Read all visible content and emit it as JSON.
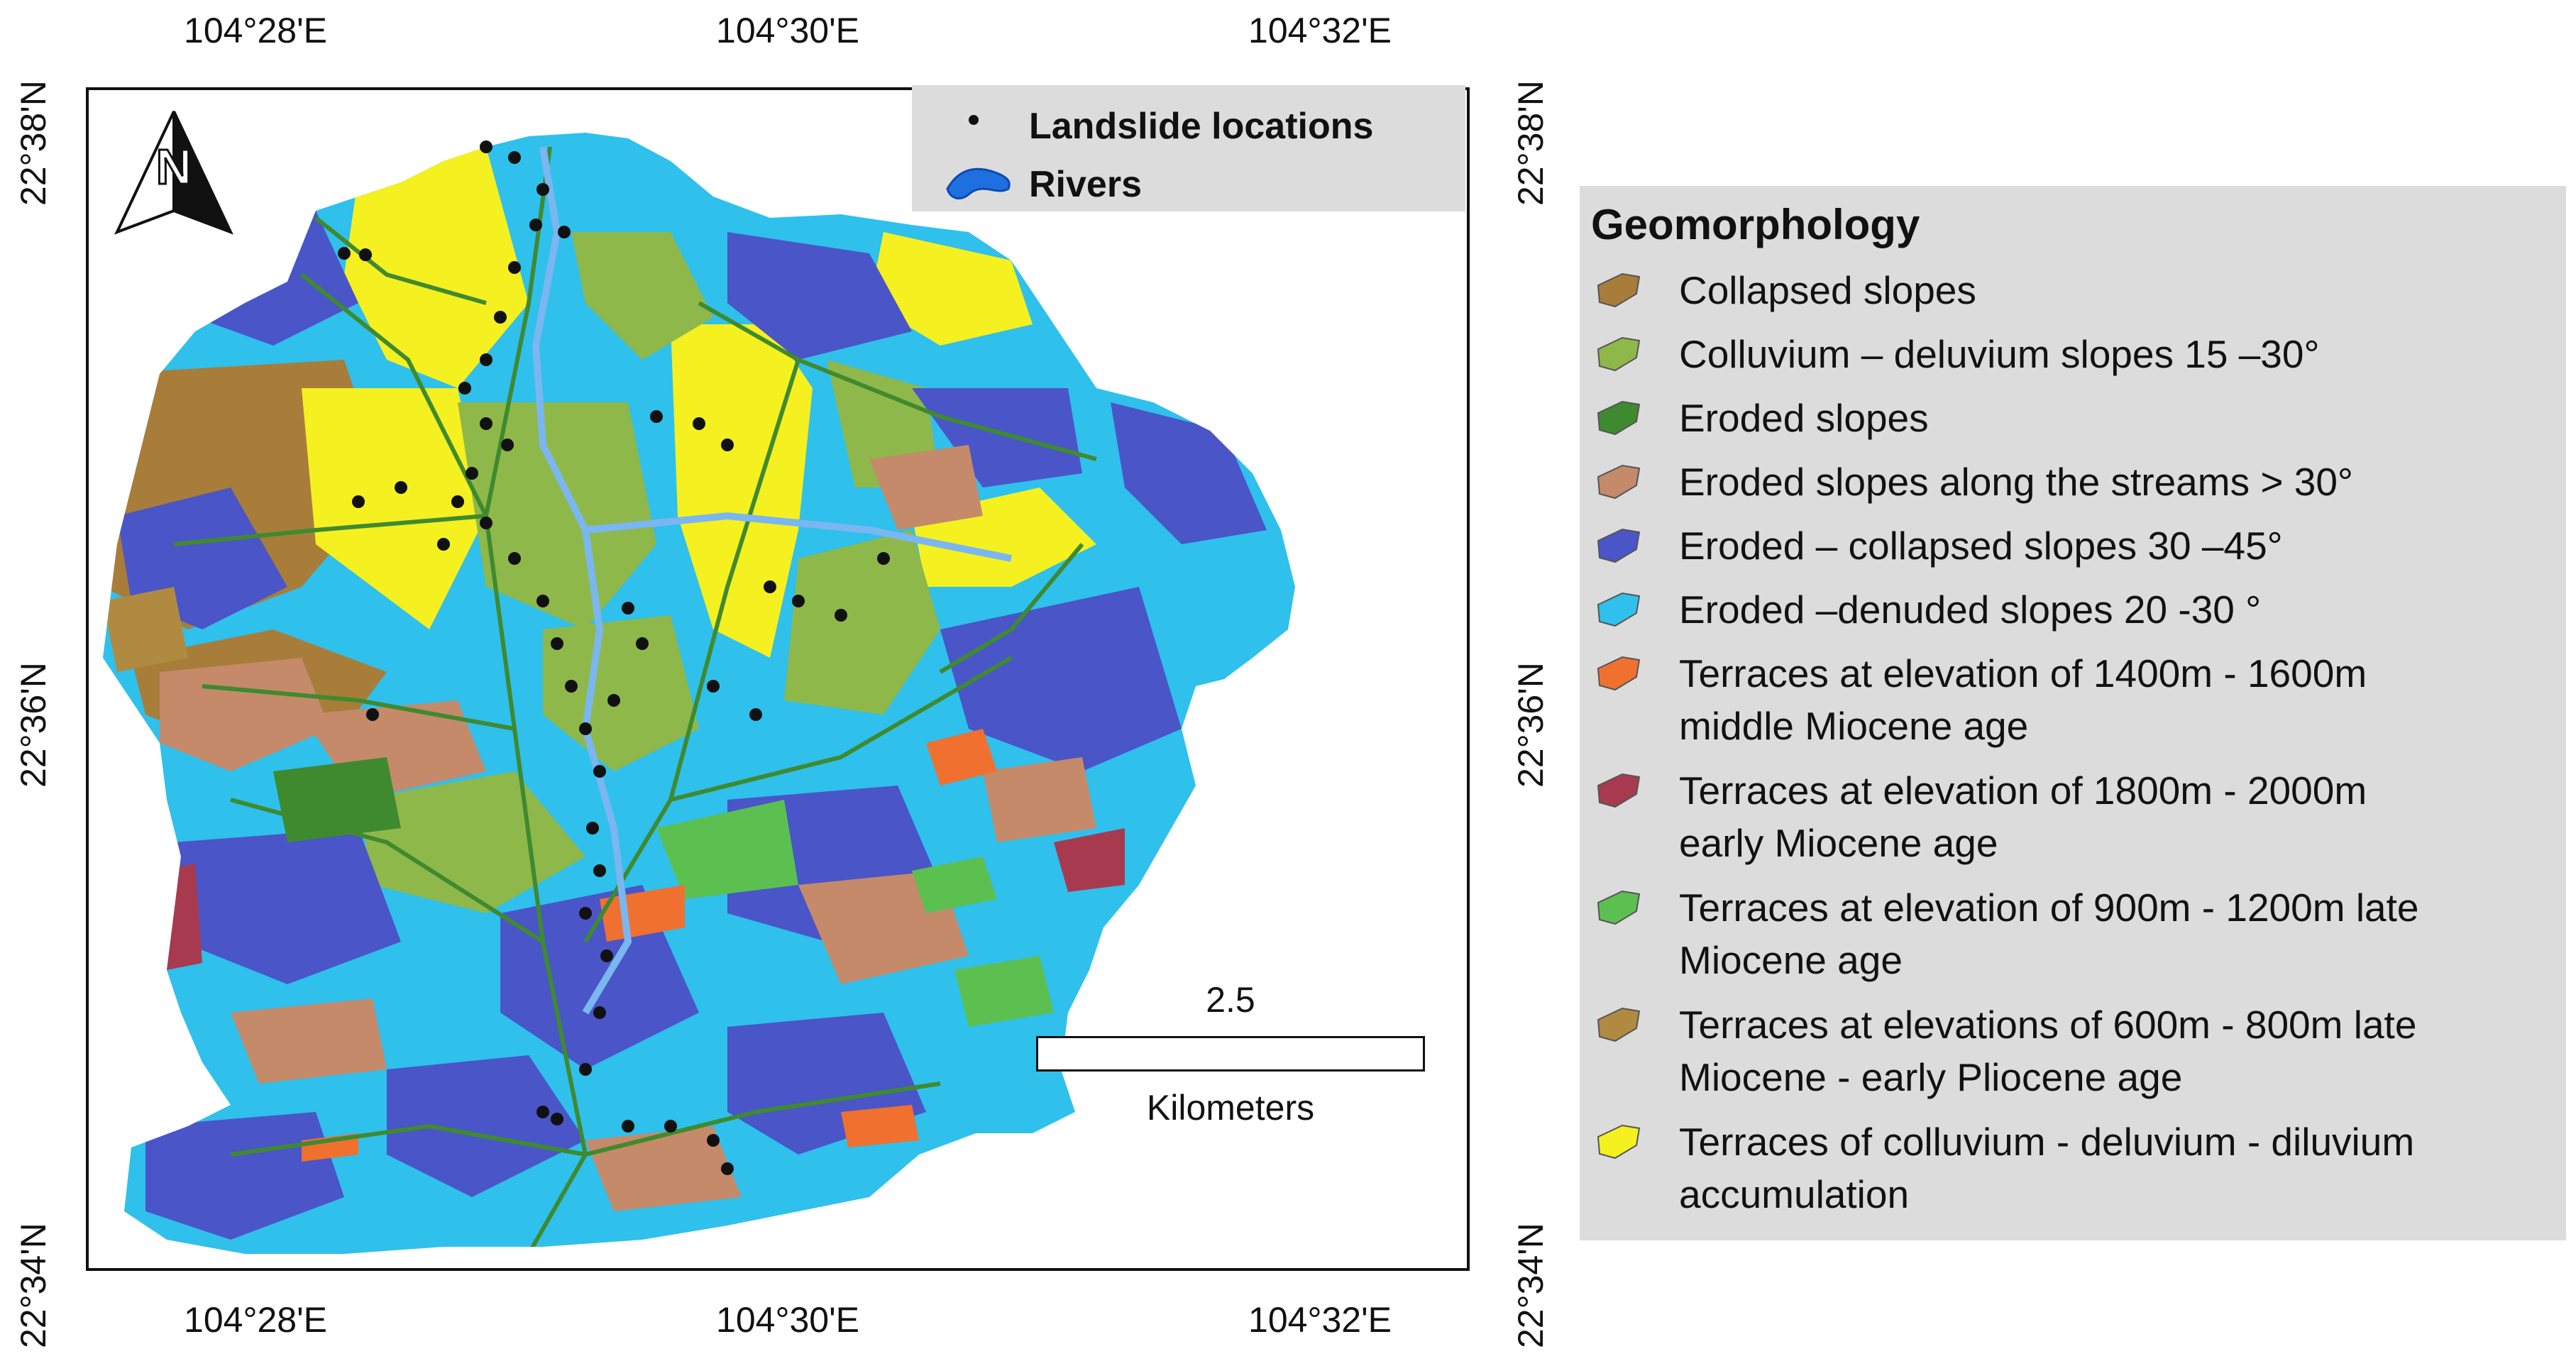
{
  "axes": {
    "top_labels": [
      "104°28'E",
      "104°30'E",
      "104°32'E"
    ],
    "bottom_labels": [
      "104°28'E",
      "104°30'E",
      "104°32'E"
    ],
    "left_labels": [
      "22°38'N",
      "22°36'N",
      "22°34'N"
    ],
    "right_labels": [
      "22°38'N",
      "22°36'N",
      "22°34'N"
    ]
  },
  "map_legend": {
    "items": [
      {
        "label": "Landslide locations",
        "icon": "dot-icon"
      },
      {
        "label": "Rivers",
        "icon": "river-icon"
      }
    ],
    "colors": {
      "dot": "#111111",
      "river": "#1e6fe0",
      "background": "#dcdcdc"
    }
  },
  "north_arrow": {
    "letter": "N"
  },
  "scale_bar": {
    "value": "2.5",
    "unit": "Kilometers"
  },
  "geomorphology_legend": {
    "title": "Geomorphology",
    "items": [
      {
        "lines": [
          "Collapsed slopes"
        ],
        "color": "#a87d3a"
      },
      {
        "lines": [
          "Colluvium – deluvium slopes 15 –30°"
        ],
        "color": "#8fb84a"
      },
      {
        "lines": [
          "Eroded slopes"
        ],
        "color": "#3f8a2f"
      },
      {
        "lines": [
          "Eroded slopes along the streams > 30°"
        ],
        "color": "#c48a6a"
      },
      {
        "lines": [
          "Eroded – collapsed slopes 30 –45°"
        ],
        "color": "#4a55c8"
      },
      {
        "lines": [
          "Eroded –denuded slopes 20 -30 °"
        ],
        "color": "#2fc0ec"
      },
      {
        "lines": [
          "Terraces at elevation of 1400m - 1600m",
          "middle Miocene age"
        ],
        "color": "#f07030"
      },
      {
        "lines": [
          "Terraces at elevation of 1800m - 2000m",
          "early Miocene age"
        ],
        "color": "#a83a50"
      },
      {
        "lines": [
          "Terraces at elevation of 900m - 1200m late",
          "Miocene age"
        ],
        "color": "#5cc050"
      },
      {
        "lines": [
          "Terraces at elevations of 600m - 800m late",
          "Miocene - early Pliocene age"
        ],
        "color": "#b08a40"
      },
      {
        "lines": [
          "Terraces of colluvium - deluvium - diluvium",
          "accumulation"
        ],
        "color": "#f5f020"
      }
    ]
  }
}
